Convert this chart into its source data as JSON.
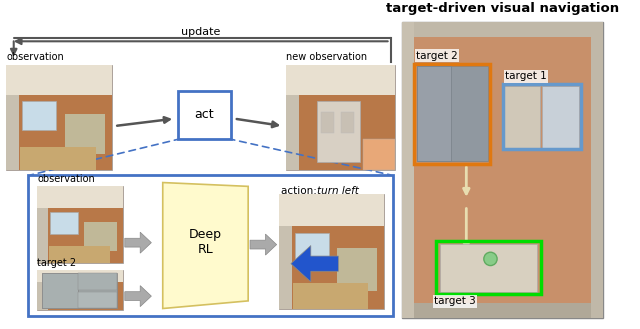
{
  "title": "target-driven visual navigation",
  "bg_color": "#ffffff",
  "update_text": "update",
  "act_text": "act",
  "observation_label": "observation",
  "new_obs_label": "new observation",
  "inner_obs_label": "observation",
  "target2_label": "target 2",
  "deep_rl_text": "Deep\nRL",
  "action_label": "action: ",
  "action_italic": "turn left",
  "target1_label": "target 1",
  "target2_right_label": "target 2",
  "target3_label": "target 3",
  "act_box_color": "#4472c4",
  "big_box_color": "#4472c4",
  "dashed_color": "#4472c4",
  "deep_rl_color": "#fffacd",
  "deep_rl_edge": "#d4c060",
  "arrow_color": "#555555",
  "fat_arrow_color": "#aaaaaa",
  "blue_arrow_color": "#2255cc",
  "orange_box_color": "#e07810",
  "blue_box_color": "#6699cc",
  "green_box_color": "#00dd00",
  "path_arrow_color": "#e8ddb0",
  "room_floor": "#b87848",
  "room_wall": "#d8d0c0",
  "room_ceiling": "#e8e0d0",
  "room_window": "#c8dce8",
  "right_panel_bg": "#c8906a",
  "right_panel_wall": "#c8c0b0",
  "right_panel_border": "#888888"
}
